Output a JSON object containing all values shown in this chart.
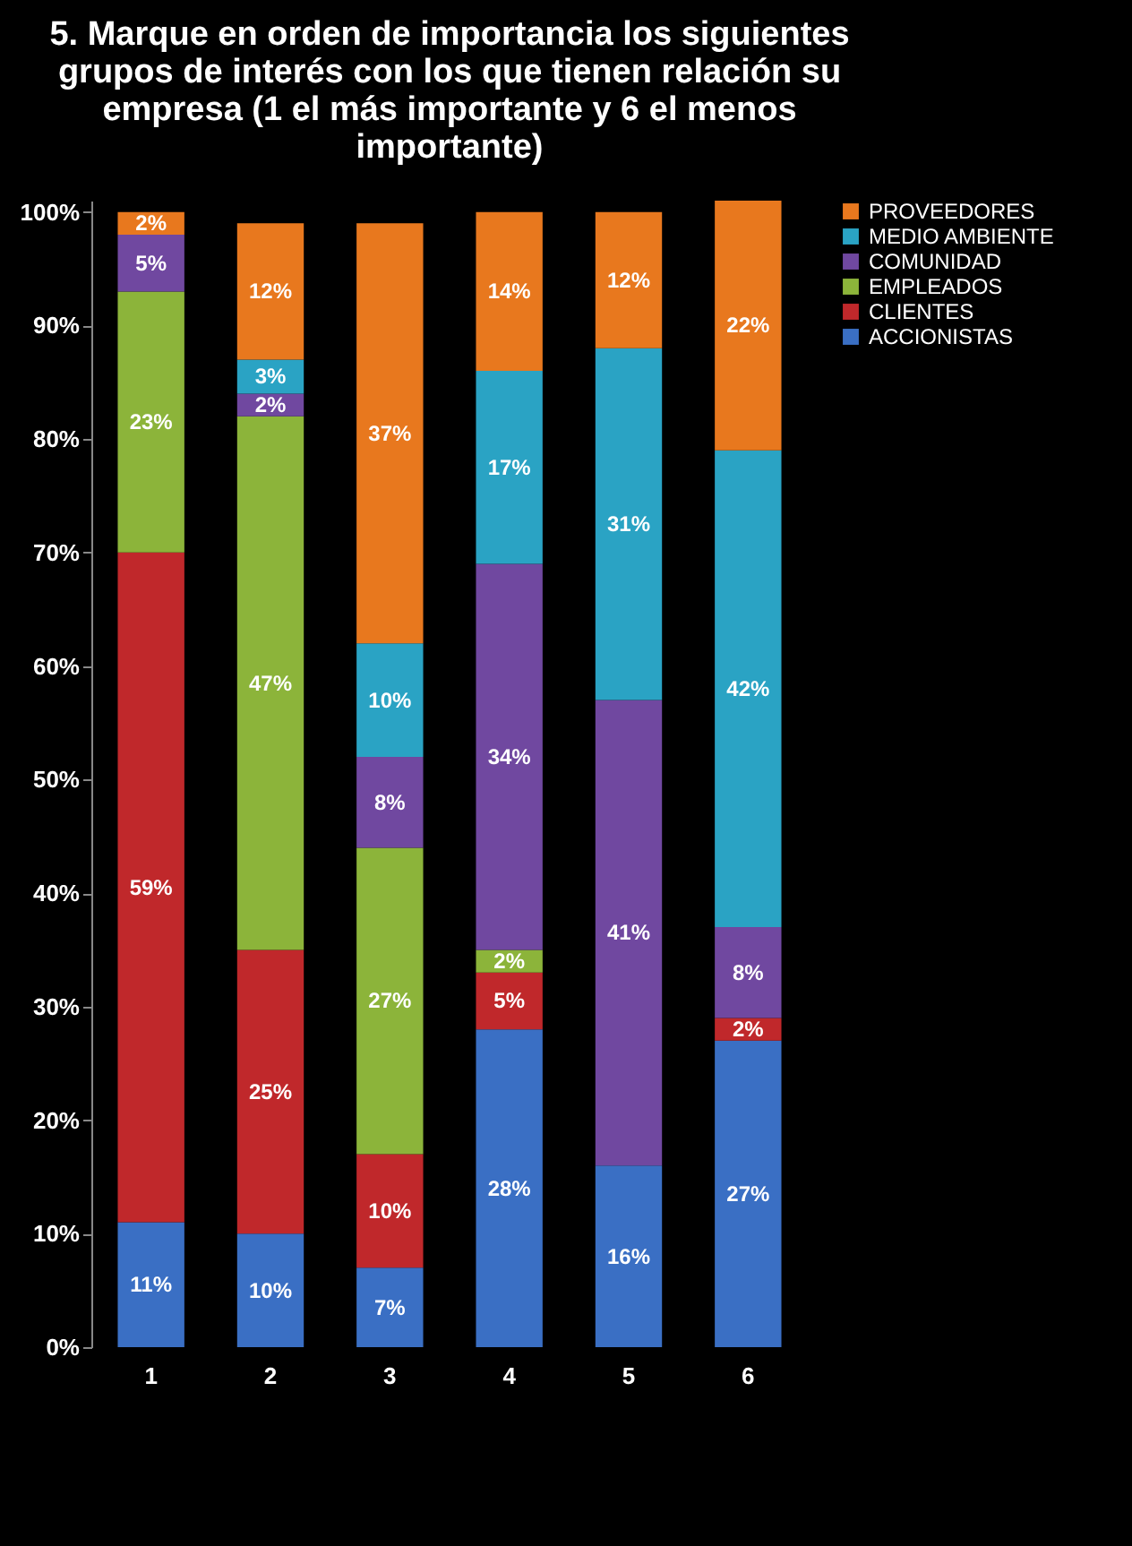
{
  "chart_data": {
    "type": "bar",
    "title": "5. Marque en orden de importancia los siguientes grupos de interés con los que tienen relación su empresa (1 el más importante y 6 el menos importante)",
    "categories": [
      "1",
      "2",
      "3",
      "4",
      "5",
      "6"
    ],
    "stacked": true,
    "legend": "right",
    "grid": false,
    "ylim": [
      0,
      101
    ],
    "yticks": [
      {
        "value": 0,
        "label": "0%"
      },
      {
        "value": 10,
        "label": "10%"
      },
      {
        "value": 20,
        "label": "20%"
      },
      {
        "value": 30,
        "label": "30%"
      },
      {
        "value": 40,
        "label": "40%"
      },
      {
        "value": 50,
        "label": "50%"
      },
      {
        "value": 60,
        "label": "60%"
      },
      {
        "value": 70,
        "label": "70%"
      },
      {
        "value": 80,
        "label": "80%"
      },
      {
        "value": 90,
        "label": "90%"
      },
      {
        "value": 100,
        "label": "100%"
      }
    ],
    "series": [
      {
        "name": "ACCIONISTAS",
        "color": "#3a6fc4",
        "values": [
          11,
          10,
          7,
          28,
          16,
          27
        ],
        "value_labels": [
          "11%",
          "10%",
          "7%",
          "28%",
          "16%",
          "27%"
        ]
      },
      {
        "name": "CLIENTES",
        "color": "#c0282b",
        "values": [
          59,
          25,
          10,
          5,
          null,
          2
        ],
        "value_labels": [
          "59%",
          "25%",
          "10%",
          "5%",
          null,
          "2%"
        ]
      },
      {
        "name": "EMPLEADOS",
        "color": "#8cb43a",
        "values": [
          23,
          47,
          27,
          2,
          null,
          null
        ],
        "value_labels": [
          "23%",
          "47%",
          "27%",
          "2%",
          null,
          null
        ]
      },
      {
        "name": "COMUNIDAD",
        "color": "#7048a0",
        "values": [
          5,
          2,
          8,
          34,
          41,
          8
        ],
        "value_labels": [
          "5%",
          "2%",
          "8%",
          "34%",
          "41%",
          "8%"
        ]
      },
      {
        "name": "MEDIO AMBIENTE",
        "color": "#2aa3c4",
        "values": [
          null,
          3,
          10,
          17,
          31,
          42
        ],
        "value_labels": [
          null,
          "3%",
          "10%",
          "17%",
          "31%",
          "42%"
        ]
      },
      {
        "name": "PROVEEDORES",
        "color": "#e8781e",
        "values": [
          2,
          12,
          37,
          14,
          12,
          22
        ],
        "value_labels": [
          "2%",
          "12%",
          "37%",
          "14%",
          "12%",
          "22%"
        ]
      }
    ]
  }
}
